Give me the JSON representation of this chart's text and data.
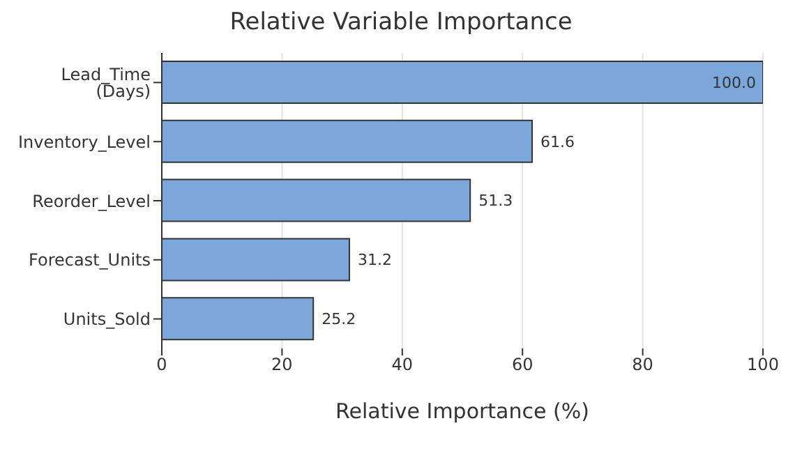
{
  "chart_data": {
    "type": "bar",
    "orientation": "horizontal",
    "title": "Relative Variable Importance",
    "xlabel": "Relative Importance (%)",
    "categories": [
      "Lead_Time (Days)",
      "Inventory_Level",
      "Reorder_Level",
      "Forecast_Units",
      "Units_Sold"
    ],
    "values": [
      100,
      61.6,
      51.3,
      31.2,
      25.2
    ],
    "value_labels": [
      "100.0",
      "61.6",
      "51.3",
      "31.2",
      "25.2"
    ],
    "color": "#7ba7db",
    "xlim": [
      0,
      100
    ],
    "xticks": [
      0,
      20,
      40,
      60,
      80,
      100
    ],
    "grid": "x",
    "legend": false
  }
}
